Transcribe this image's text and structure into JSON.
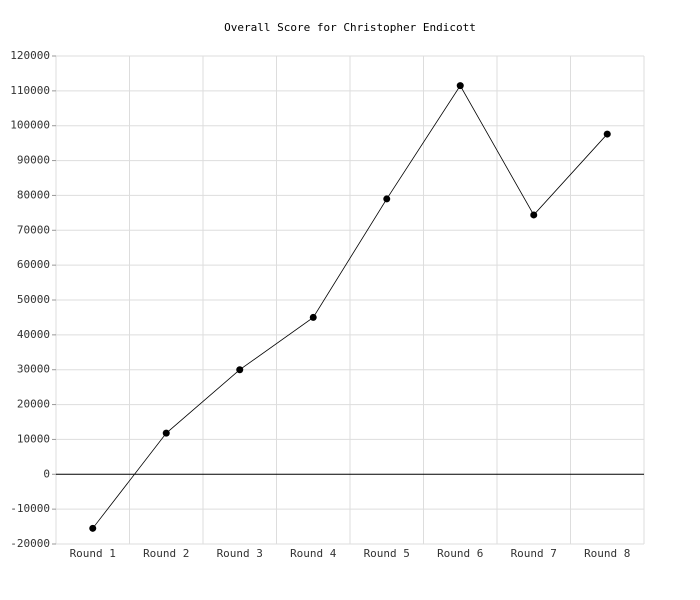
{
  "chart_data": {
    "type": "line",
    "title": "Overall Score for Christopher Endicott",
    "categories": [
      "Round 1",
      "Round 2",
      "Round 3",
      "Round 4",
      "Round 5",
      "Round 6",
      "Round 7",
      "Round 8"
    ],
    "values": [
      -15500,
      11800,
      30000,
      45000,
      79000,
      111500,
      74400,
      97600
    ],
    "color": "#000000",
    "ylim": [
      -20000,
      120000
    ],
    "yticks": [
      -20000,
      -10000,
      0,
      10000,
      20000,
      30000,
      40000,
      50000,
      60000,
      70000,
      80000,
      90000,
      100000,
      110000,
      120000
    ],
    "grid": true
  }
}
